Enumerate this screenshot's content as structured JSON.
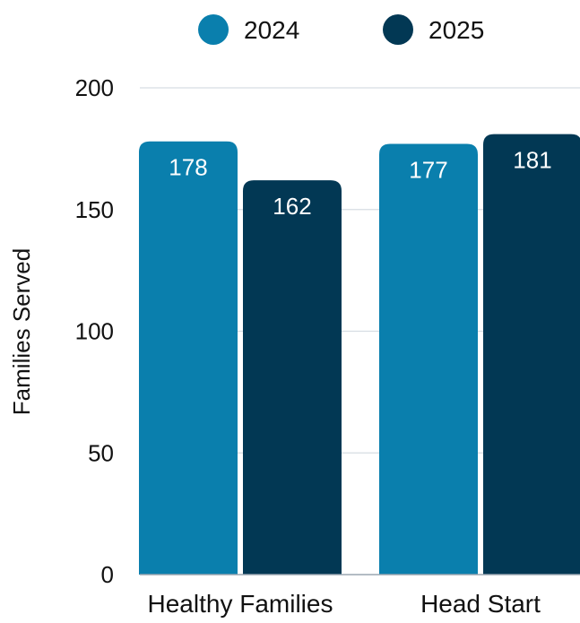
{
  "chart_data": {
    "type": "bar",
    "title": "",
    "xlabel": "",
    "ylabel": "Families Served",
    "ylim": [
      0,
      200
    ],
    "yticks": [
      0,
      50,
      100,
      150,
      200
    ],
    "grid": true,
    "legend_position": "top",
    "categories": [
      "Healthy Families",
      "Head Start"
    ],
    "series": [
      {
        "name": "2024",
        "color": "#0a7fad",
        "values": [
          178,
          177
        ]
      },
      {
        "name": "2025",
        "color": "#023854",
        "values": [
          162,
          181
        ]
      }
    ]
  }
}
